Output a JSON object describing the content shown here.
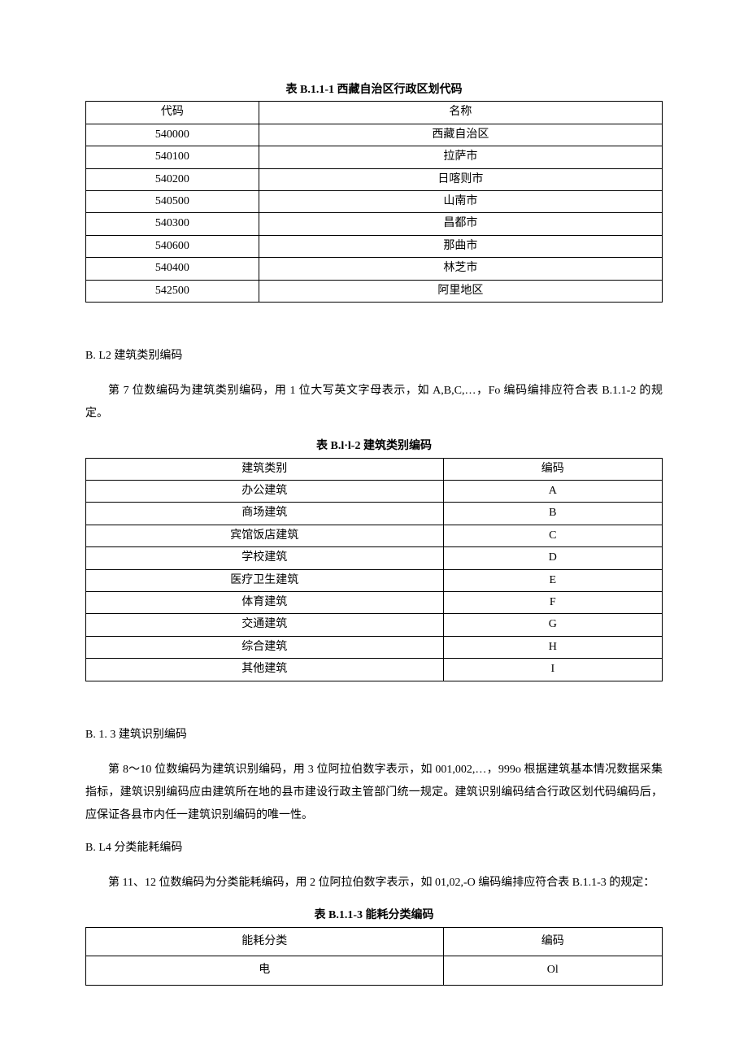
{
  "table1": {
    "title": "表 B.1.1-1 西藏自治区行政区划代码",
    "headers": [
      "代码",
      "名称"
    ],
    "rows": [
      [
        "540000",
        "西藏自治区"
      ],
      [
        "540100",
        "拉萨市"
      ],
      [
        "540200",
        "日喀则市"
      ],
      [
        "540500",
        "山南市"
      ],
      [
        "540300",
        "昌都市"
      ],
      [
        "540600",
        "那曲市"
      ],
      [
        "540400",
        "林芝市"
      ],
      [
        "542500",
        "阿里地区"
      ]
    ]
  },
  "section2": {
    "heading": "B. L2 建筑类别编码",
    "paragraph": "第 7 位数编码为建筑类别编码，用 1 位大写英文字母表示，如 A,B,C,…，Fo 编码编排应符合表 B.1.1-2 的规定。"
  },
  "table2": {
    "title": "表 B.l·l-2 建筑类别编码",
    "headers": [
      "建筑类别",
      "编码"
    ],
    "rows": [
      [
        "办公建筑",
        "A"
      ],
      [
        "商场建筑",
        "B"
      ],
      [
        "宾馆饭店建筑",
        "C"
      ],
      [
        "学校建筑",
        "D"
      ],
      [
        "医疗卫生建筑",
        "E"
      ],
      [
        "体育建筑",
        "F"
      ],
      [
        "交通建筑",
        "G"
      ],
      [
        "综合建筑",
        "H"
      ],
      [
        "其他建筑",
        "I"
      ]
    ]
  },
  "section3": {
    "heading": "B. 1. 3 建筑识别编码",
    "paragraph": "第 8～10 位数编码为建筑识别编码，用 3 位阿拉伯数字表示，如 001,002,…，999o 根据建筑基本情况数据采集指标，建筑识别编码应由建筑所在地的县市建设行政主管部门统一规定。建筑识别编码结合行政区划代码编码后，应保证各县市内任一建筑识别编码的唯一性。"
  },
  "section4": {
    "heading": "B. L4 分类能耗编码",
    "paragraph": "第 11、12 位数编码为分类能耗编码，用 2 位阿拉伯数字表示，如 01,02,-O 编码编排应符合表 B.1.1-3 的规定："
  },
  "table3": {
    "title": "表 B.1.1-3 能耗分类编码",
    "headers": [
      "能耗分类",
      "编码"
    ],
    "rows": [
      [
        "电",
        "Ol"
      ]
    ]
  }
}
